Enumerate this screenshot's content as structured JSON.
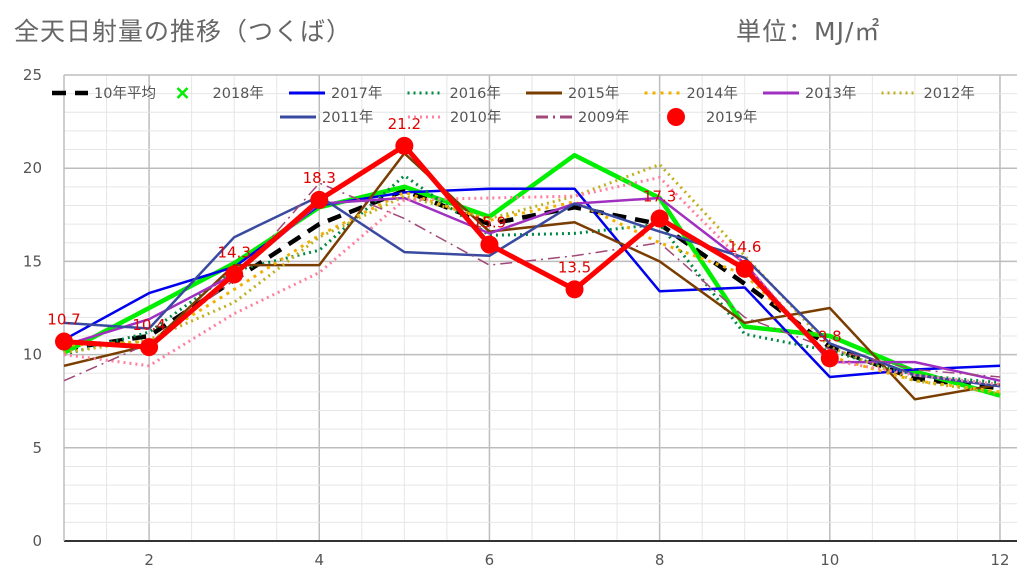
{
  "title": "全天日射量の推移（つくば）",
  "unit": "単位：MJ/㎡",
  "chart_data": {
    "type": "line",
    "x": [
      1,
      2,
      3,
      4,
      5,
      6,
      7,
      8,
      9,
      10,
      11,
      12
    ],
    "xticks": [
      2,
      4,
      6,
      8,
      10,
      12
    ],
    "yticks": [
      0,
      5,
      10,
      15,
      20,
      25
    ],
    "xlim": [
      1,
      12.2
    ],
    "ylim": [
      0,
      25
    ],
    "grid": true,
    "legend_position": "top",
    "series": [
      {
        "name": "10年平均",
        "color": "#000000",
        "width": 4.5,
        "dash": "14,9",
        "values": [
          10.3,
          11.0,
          14.0,
          17.0,
          18.8,
          17.0,
          17.9,
          17.0,
          13.8,
          10.4,
          8.7,
          8.2
        ]
      },
      {
        "name": "2018年",
        "color": "#00ee00",
        "width": 4.5,
        "dash": "",
        "marker": "x",
        "values": [
          10.1,
          12.5,
          14.9,
          17.9,
          19.0,
          17.4,
          20.7,
          18.4,
          11.5,
          11.0,
          9.1,
          7.8
        ]
      },
      {
        "name": "2017年",
        "color": "#0000ee",
        "width": 2.5,
        "dash": "",
        "values": [
          10.8,
          13.3,
          14.7,
          18.0,
          18.7,
          18.9,
          18.9,
          13.4,
          13.6,
          8.8,
          9.2,
          9.4
        ]
      },
      {
        "name": "2016年",
        "color": "#008844",
        "width": 3,
        "dash": "2,4",
        "values": [
          10.0,
          11.2,
          14.5,
          15.6,
          19.6,
          16.4,
          16.5,
          17.0,
          11.1,
          10.2,
          8.9,
          8.5
        ]
      },
      {
        "name": "2015年",
        "color": "#7a3d00",
        "width": 2.5,
        "dash": "",
        "values": [
          9.4,
          10.5,
          14.8,
          14.8,
          20.8,
          16.6,
          17.1,
          15.0,
          11.7,
          12.5,
          7.6,
          8.4
        ]
      },
      {
        "name": "2014年",
        "color": "#f0b000",
        "width": 3,
        "dash": "3,5",
        "values": [
          10.5,
          10.7,
          13.5,
          16.4,
          18.7,
          17.2,
          18.2,
          16.0,
          14.3,
          9.9,
          8.6,
          8.0
        ]
      },
      {
        "name": "2013年",
        "color": "#a030c0",
        "width": 2.5,
        "dash": "",
        "values": [
          10.5,
          11.9,
          14.3,
          18.1,
          18.4,
          16.5,
          18.1,
          18.4,
          14.9,
          9.6,
          9.6,
          8.6
        ]
      },
      {
        "name": "2012年",
        "color": "#c0b020",
        "width": 3,
        "dash": "2,4",
        "values": [
          10.1,
          10.8,
          12.8,
          16.3,
          18.5,
          17.3,
          18.5,
          20.2,
          15.3,
          10.4,
          8.6,
          7.9
        ]
      },
      {
        "name": "2011年",
        "color": "#3a4aa0",
        "width": 2.5,
        "dash": "",
        "values": [
          11.7,
          11.4,
          16.3,
          18.5,
          15.5,
          15.3,
          18.1,
          16.6,
          15.2,
          10.6,
          8.9,
          8.3
        ]
      },
      {
        "name": "2010年",
        "color": "#ff80a0",
        "width": 3,
        "dash": "2,4",
        "values": [
          10.0,
          9.4,
          12.2,
          14.4,
          18.3,
          18.4,
          18.5,
          19.5,
          14.9,
          9.7,
          8.9,
          8.4
        ]
      },
      {
        "name": "2009年",
        "color": "#a04878",
        "width": 1.5,
        "dash": "12,5,2,5",
        "values": [
          8.6,
          10.6,
          14.0,
          19.2,
          17.3,
          14.8,
          15.3,
          16.0,
          12.0,
          10.3,
          9.2,
          8.8
        ]
      },
      {
        "name": "2019年",
        "color": "#ff0000",
        "width": 5,
        "dash": "",
        "marker": "circle",
        "values": [
          10.7,
          10.4,
          14.3,
          18.3,
          21.2,
          15.9,
          13.5,
          17.3,
          14.6,
          9.8,
          null,
          null
        ]
      }
    ],
    "data_labels": [
      {
        "x": 1,
        "y": 10.7,
        "text": "10.7"
      },
      {
        "x": 2,
        "y": 10.4,
        "text": "10.4"
      },
      {
        "x": 3,
        "y": 14.3,
        "text": "14.3"
      },
      {
        "x": 4,
        "y": 18.3,
        "text": "18.3"
      },
      {
        "x": 5,
        "y": 21.2,
        "text": "21.2"
      },
      {
        "x": 6,
        "y": 15.9,
        "text": "15.9"
      },
      {
        "x": 7,
        "y": 13.5,
        "text": "13.5"
      },
      {
        "x": 8,
        "y": 17.3,
        "text": "17.3"
      },
      {
        "x": 9,
        "y": 14.6,
        "text": "14.6"
      },
      {
        "x": 10,
        "y": 9.8,
        "text": "9.8"
      }
    ]
  }
}
